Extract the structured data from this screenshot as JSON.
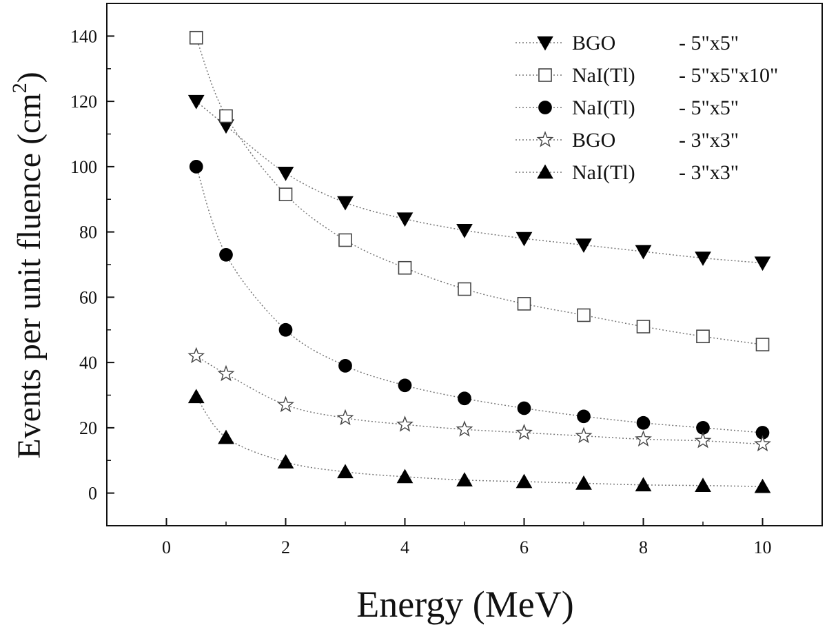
{
  "chart_data": {
    "type": "scatter",
    "title": "",
    "xlabel": "Energy (MeV)",
    "ylabel": "Events per unit fluence (cm²)",
    "ylabel_main": "Events per unit fluence (cm",
    "ylabel_sup": "2",
    "ylabel_close": ")",
    "xlim": [
      -1,
      11
    ],
    "ylim": [
      -10,
      150
    ],
    "xticks": [
      0,
      2,
      4,
      6,
      8,
      10
    ],
    "yticks": [
      0,
      20,
      40,
      60,
      80,
      100,
      120,
      140
    ],
    "grid": false,
    "legend_position": "top-right",
    "series": [
      {
        "name": "BGO",
        "size": "- 5\"x5\"",
        "marker": "triangle-down-filled",
        "x": [
          0.5,
          1,
          2,
          3,
          4,
          5,
          6,
          7,
          8,
          9,
          10
        ],
        "y": [
          120,
          112.5,
          98,
          89,
          84,
          80.5,
          78,
          76,
          74,
          72,
          70.5
        ]
      },
      {
        "name": "NaI(Tl)",
        "size": "- 5\"x5\"x10\"",
        "marker": "square-open",
        "x": [
          0.5,
          1,
          2,
          3,
          4,
          5,
          6,
          7,
          8,
          9,
          10
        ],
        "y": [
          139.5,
          115.5,
          91.5,
          77.5,
          69,
          62.5,
          58,
          54.5,
          51,
          48,
          45.5
        ]
      },
      {
        "name": "NaI(Tl)",
        "size": "- 5\"x5\"",
        "marker": "circle-filled",
        "x": [
          0.5,
          1,
          2,
          3,
          4,
          5,
          6,
          7,
          8,
          9,
          10
        ],
        "y": [
          100,
          73,
          50,
          39,
          33,
          29,
          26,
          23.5,
          21.5,
          20,
          18.5
        ]
      },
      {
        "name": "BGO",
        "size": "- 3\"x3\"",
        "marker": "star-open",
        "x": [
          0.5,
          1,
          2,
          3,
          4,
          5,
          6,
          7,
          8,
          9,
          10
        ],
        "y": [
          42,
          36.5,
          27,
          23,
          21,
          19.5,
          18.5,
          17.5,
          16.5,
          16,
          15
        ]
      },
      {
        "name": "NaI(Tl)",
        "size": "- 3\"x3\"",
        "marker": "triangle-up-filled",
        "x": [
          0.5,
          1,
          2,
          3,
          4,
          5,
          6,
          7,
          8,
          9,
          10
        ],
        "y": [
          29.5,
          17,
          9.5,
          6.5,
          5,
          4,
          3.5,
          3,
          2.5,
          2.3,
          2
        ]
      }
    ]
  }
}
